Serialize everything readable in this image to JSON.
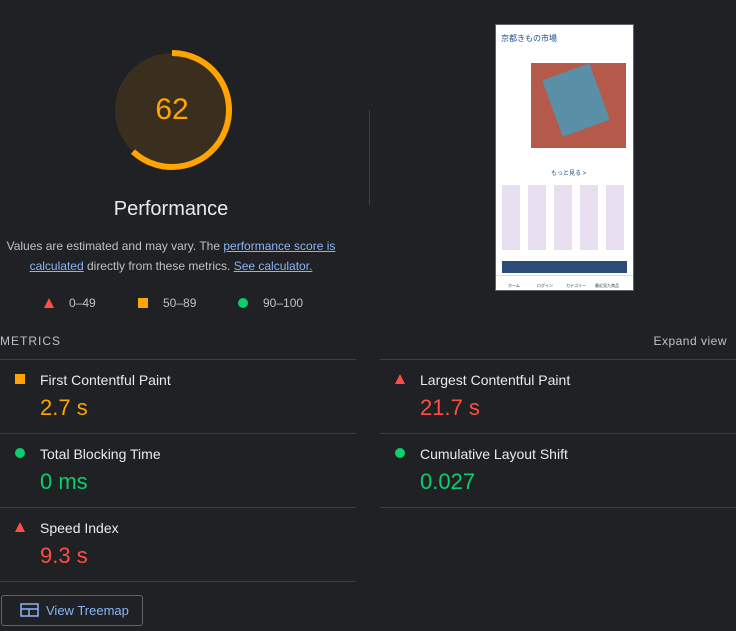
{
  "gauge": {
    "score": 62,
    "status": "average",
    "title": "Performance"
  },
  "description": {
    "before": "Values are estimated and may vary. The ",
    "link1": "performance score is calculated",
    "middle": " directly from these metrics. ",
    "link2": "See calculator."
  },
  "legend": [
    {
      "label": "0–49",
      "status": "fail"
    },
    {
      "label": "50–89",
      "status": "average"
    },
    {
      "label": "90–100",
      "status": "pass"
    }
  ],
  "thumbnail": {
    "site_title": "京都きもの市場",
    "more": "もっと見る >",
    "nav": [
      "ホーム",
      "ログイン",
      "カテゴリー",
      "最近見た商品"
    ]
  },
  "metrics_header": {
    "title": "METRICS",
    "toggle": "Expand view"
  },
  "metrics": [
    {
      "name": "First Contentful Paint",
      "value": "2.7 s",
      "status": "average"
    },
    {
      "name": "Largest Contentful Paint",
      "value": "21.7 s",
      "status": "fail"
    },
    {
      "name": "Total Blocking Time",
      "value": "0 ms",
      "status": "pass"
    },
    {
      "name": "Cumulative Layout Shift",
      "value": "0.027",
      "status": "pass"
    },
    {
      "name": "Speed Index",
      "value": "9.3 s",
      "status": "fail"
    }
  ],
  "button": {
    "label": "View Treemap"
  }
}
